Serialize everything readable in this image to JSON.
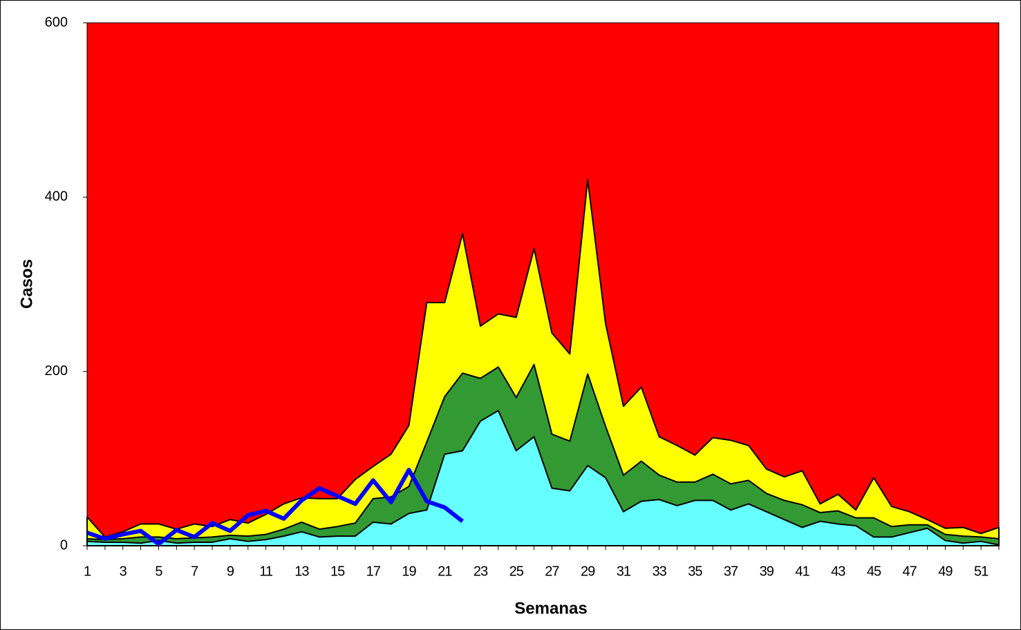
{
  "chart_data": {
    "type": "area",
    "x_label": "Semanas",
    "y_label": "Casos",
    "categories": [
      "1",
      null,
      "3",
      null,
      "5",
      null,
      "7",
      null,
      "9",
      null,
      "11",
      null,
      "13",
      null,
      "15",
      null,
      "17",
      null,
      "19",
      null,
      "21",
      null,
      "23",
      null,
      "25",
      null,
      "27",
      null,
      "29",
      null,
      "31",
      null,
      "33",
      null,
      "35",
      null,
      "37",
      null,
      "39",
      null,
      "41",
      null,
      "43",
      null,
      "45",
      null,
      "47",
      null,
      "49",
      null,
      "51",
      null
    ],
    "ylim": [
      0,
      600
    ],
    "yticks": [
      0,
      200,
      400,
      600
    ],
    "plot_background": "#ff0000",
    "series": [
      {
        "color": "#ffff00",
        "values": [
          33,
          10,
          16,
          25,
          25,
          19,
          25,
          22,
          30,
          26,
          36,
          48,
          55,
          54,
          54,
          76,
          91,
          105,
          138,
          279,
          279,
          358,
          252,
          266,
          262,
          341,
          244,
          220,
          420,
          255,
          160,
          182,
          125,
          115,
          104,
          124,
          121,
          115,
          88,
          79,
          86,
          48,
          59,
          41,
          78,
          45,
          39,
          30,
          20,
          21,
          14,
          21
        ]
      },
      {
        "color": "#339933",
        "values": [
          8,
          7,
          8,
          10,
          10,
          8,
          9,
          10,
          12,
          11,
          13,
          19,
          27,
          19,
          22,
          26,
          54,
          56,
          68,
          119,
          171,
          198,
          192,
          205,
          170,
          208,
          128,
          120,
          197,
          137,
          81,
          97,
          81,
          73,
          73,
          82,
          71,
          75,
          60,
          52,
          47,
          38,
          40,
          32,
          32,
          22,
          24,
          24,
          13,
          11,
          10,
          8
        ]
      },
      {
        "color": "#66ffff",
        "values": [
          5,
          4,
          4,
          3,
          6,
          3,
          4,
          4,
          8,
          5,
          7,
          11,
          16,
          10,
          11,
          11,
          27,
          25,
          37,
          41,
          105,
          109,
          143,
          155,
          109,
          125,
          66,
          63,
          92,
          78,
          39,
          51,
          53,
          46,
          52,
          52,
          41,
          48,
          39,
          30,
          21,
          28,
          25,
          23,
          10,
          10,
          15,
          20,
          6,
          3,
          5,
          1
        ]
      },
      {
        "color": "#0000ff",
        "line": true,
        "values": [
          15,
          8,
          13,
          17,
          2,
          18,
          10,
          26,
          17,
          35,
          40,
          31,
          52,
          66,
          57,
          48,
          75,
          50,
          87,
          51,
          44,
          28,
          null,
          null,
          null,
          null,
          null,
          null,
          null,
          null,
          null,
          null,
          null,
          null,
          null,
          null,
          null,
          null,
          null,
          null,
          null,
          null,
          null,
          null,
          null,
          null,
          null,
          null,
          null,
          null,
          null,
          null
        ]
      }
    ]
  }
}
